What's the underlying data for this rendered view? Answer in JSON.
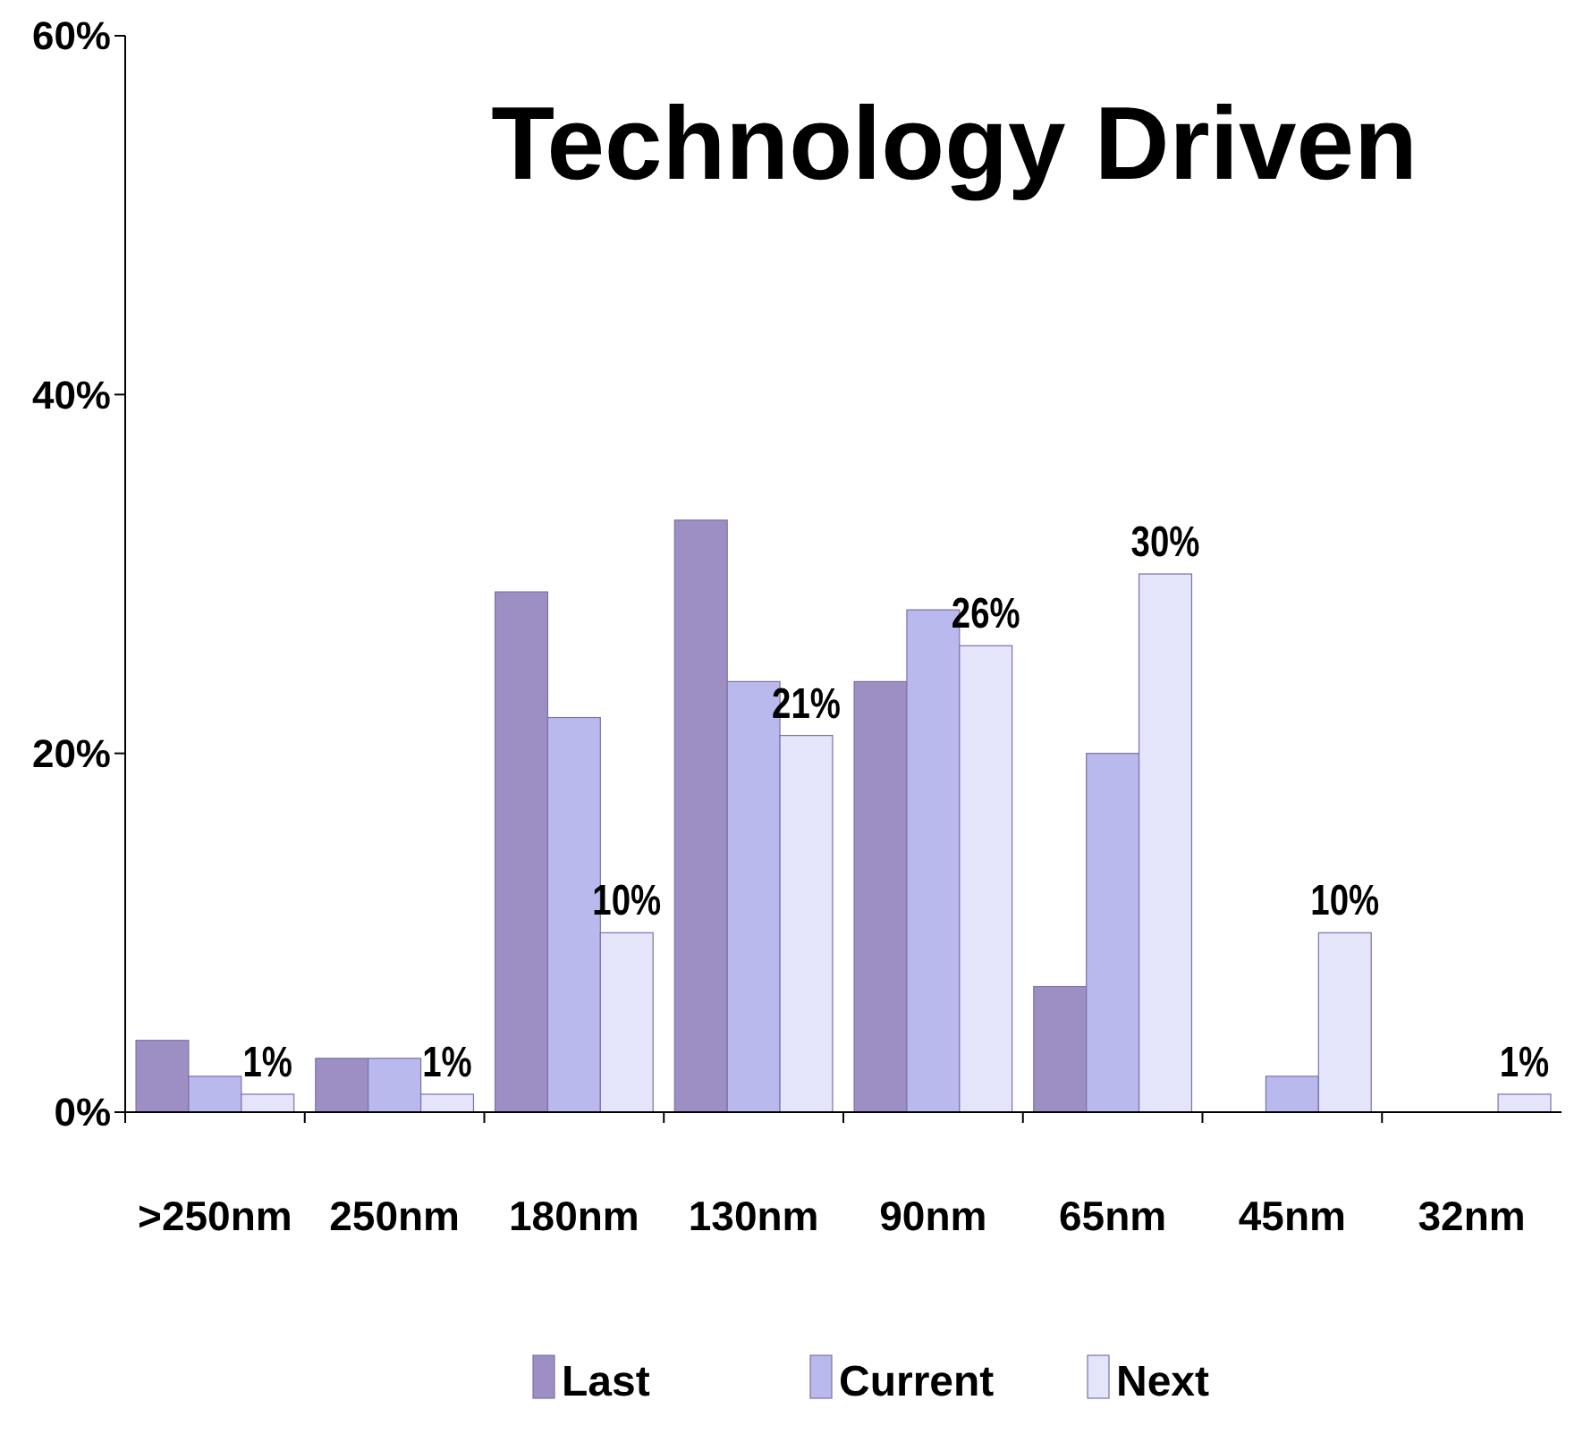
{
  "chart_data": {
    "type": "bar",
    "title": "Technology Driven",
    "categories": [
      ">250nm",
      "250nm",
      "180nm",
      "130nm",
      "90nm",
      "65nm",
      "45nm",
      "32nm"
    ],
    "series": [
      {
        "name": "Last",
        "color": "#9d8fc4",
        "values": [
          4,
          3,
          29,
          33,
          24,
          7,
          0,
          0
        ]
      },
      {
        "name": "Current",
        "color": "#b9b9ee",
        "values": [
          2,
          3,
          22,
          24,
          28,
          20,
          2,
          0
        ]
      },
      {
        "name": "Next",
        "color": "#e4e4fb",
        "values": [
          1,
          1,
          10,
          21,
          26,
          30,
          10,
          1
        ],
        "value_labels": [
          "1%",
          "1%",
          "10%",
          "21%",
          "26%",
          "30%",
          "10%",
          "1%"
        ]
      }
    ],
    "ylim": [
      0,
      60
    ],
    "yticks": [
      {
        "value": 0,
        "label": "0%"
      },
      {
        "value": 20,
        "label": "20%"
      },
      {
        "value": 40,
        "label": "40%"
      },
      {
        "value": 60,
        "label": "60%"
      }
    ],
    "grid": false,
    "legend": "bottom"
  }
}
